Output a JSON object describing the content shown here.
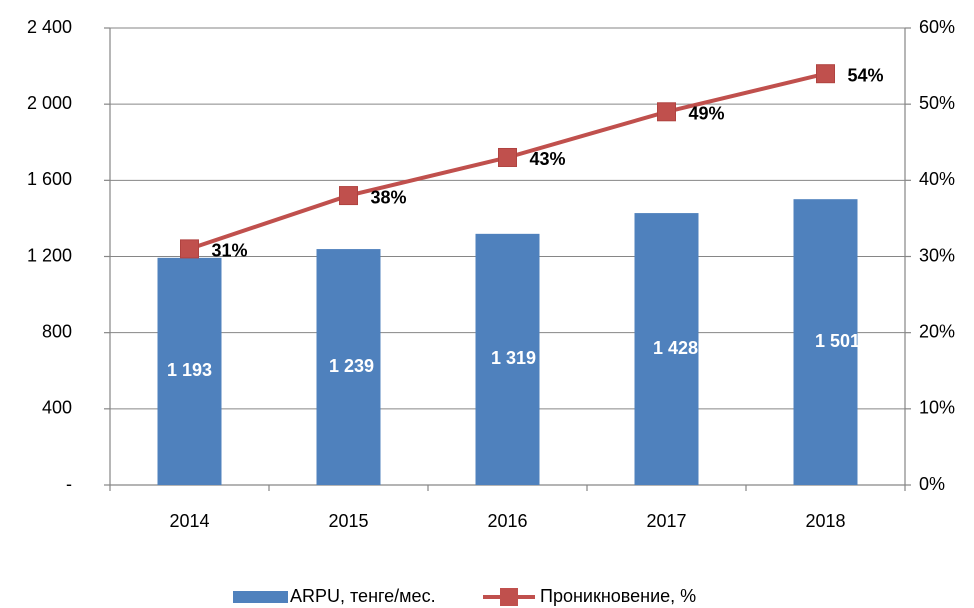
{
  "chart_data": {
    "type": "bar",
    "categories": [
      "2014",
      "2015",
      "2016",
      "2017",
      "2018"
    ],
    "series": [
      {
        "name": "ARPU, тенге/мес.",
        "type": "bar",
        "color": "#4f81bd",
        "values": [
          1193,
          1239,
          1319,
          1428,
          1501
        ],
        "value_labels": [
          "1 193",
          "1 239",
          "1 319",
          "1 428",
          "1 501"
        ]
      },
      {
        "name": "Проникновение, %",
        "type": "line",
        "axis": "y2",
        "color": "#c0504d",
        "values": [
          31,
          38,
          43,
          49,
          54
        ],
        "value_labels": [
          "31%",
          "38%",
          "43%",
          "49%",
          "54%"
        ]
      }
    ],
    "ylim": [
      0,
      2400
    ],
    "yticks": [
      {
        "value": 0,
        "label": "-"
      },
      400,
      800,
      {
        "value": 1200,
        "label": "1 200"
      },
      {
        "value": 1600,
        "label": "1 600"
      },
      {
        "value": 2000,
        "label": "2 000"
      },
      {
        "value": 2400,
        "label": "2 400"
      }
    ],
    "y2lim": [
      0,
      60
    ],
    "y2ticks": [
      {
        "value": 0,
        "label": "0%"
      },
      {
        "value": 10,
        "label": "10%"
      },
      {
        "value": 20,
        "label": "20%"
      },
      {
        "value": 30,
        "label": "30%"
      },
      {
        "value": 40,
        "label": "40%"
      },
      {
        "value": 50,
        "label": "50%"
      },
      {
        "value": 60,
        "label": "60%"
      }
    ],
    "grid": true,
    "legend": "bottom"
  }
}
